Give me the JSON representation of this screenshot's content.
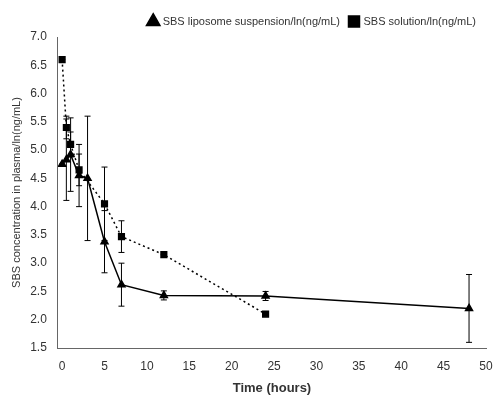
{
  "chart_data": {
    "type": "line",
    "xlabel": "Time (hours)",
    "ylabel": "SBS concentration in plasma/ln(ng/mL)",
    "xlim": [
      -0.5,
      50
    ],
    "ylim": [
      1.5,
      7.0
    ],
    "xticks": [
      0,
      5,
      10,
      15,
      20,
      25,
      30,
      35,
      40,
      45,
      50
    ],
    "yticks": [
      1.5,
      {
        "value": 2,
        "label": "2.0"
      },
      2.5,
      {
        "value": 3,
        "label": "3.0"
      },
      3.5,
      {
        "value": 4,
        "label": "4.0"
      },
      4.5,
      {
        "value": 5,
        "label": "5.0"
      },
      5.5,
      {
        "value": 6,
        "label": "6.0"
      },
      6.5,
      {
        "value": 7,
        "label": "7.0"
      }
    ],
    "grid": false,
    "legend": "upper right",
    "series": [
      {
        "name": "SBS liposome suspension/ln(ng/mL)",
        "color": "#000000",
        "marker": "triangle",
        "line_style": "solid",
        "x": [
          0,
          0.5,
          1,
          2,
          3,
          5,
          7,
          12,
          24,
          48
        ],
        "values": [
          4.75,
          4.83,
          4.92,
          4.55,
          4.5,
          3.38,
          2.62,
          2.43,
          2.42,
          2.2
        ],
        "yerr": [
          0.0,
          0.72,
          0.65,
          0.55,
          1.1,
          0.55,
          0.38,
          0.08,
          0.08,
          0.6
        ]
      },
      {
        "name": "SBS solution/ln(ng/mL)",
        "color": "#000000",
        "marker": "square",
        "line_style": "dotted",
        "x": [
          0,
          0.5,
          1,
          2,
          5,
          7,
          12,
          24
        ],
        "values": [
          6.6,
          5.4,
          5.1,
          4.65,
          4.05,
          3.47,
          3.15,
          2.1
        ],
        "yerr": [
          0.0,
          0.2,
          0.22,
          0.28,
          0.65,
          0.28,
          0.0,
          0.0
        ]
      }
    ]
  }
}
